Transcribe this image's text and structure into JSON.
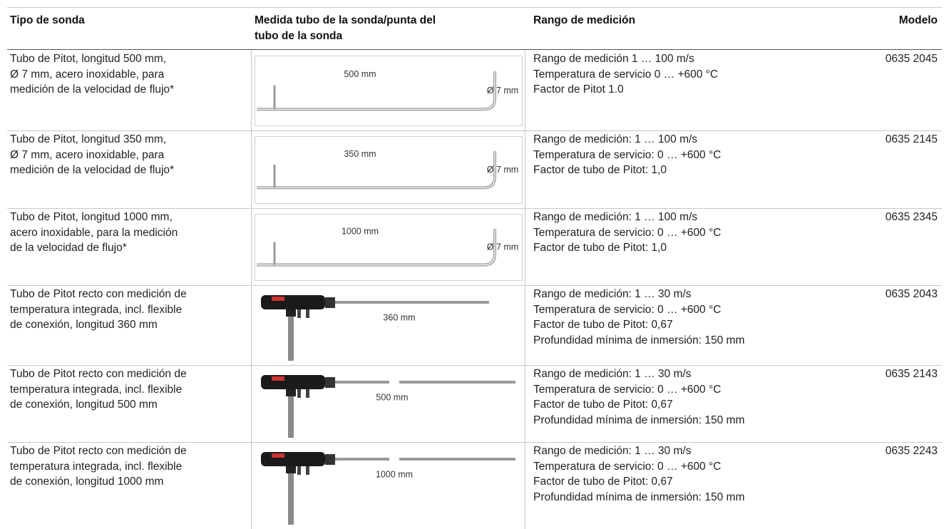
{
  "table": {
    "header": [
      [
        "Tipo de sonda"
      ],
      [
        "Medida tubo de la sonda/punta del",
        "tubo de la sonda"
      ],
      [
        "Rango de medición"
      ],
      [
        "Modelo"
      ]
    ],
    "rows": [
      {
        "type": [
          "Tubo de Pitot, longitud 500 mm,",
          "Ø 7 mm, acero inoxidable, para",
          "medición de la velocidad de flujo*"
        ],
        "drawing": {
          "length": "500 mm",
          "diameter": "Ø 7 mm"
        },
        "range": [
          "Rango de medición 1 … 100 m/s",
          "Temperatura de servicio 0 … +600 °C",
          "Factor de Pitot 1.0"
        ],
        "model": "0635 2045"
      },
      {
        "type": [
          "Tubo de Pitot, longitud 350 mm,",
          "Ø 7 mm, acero inoxidable, para",
          "medición de la velocidad de flujo*"
        ],
        "drawing": {
          "length": "350 mm",
          "diameter": "Ø 7 mm"
        },
        "range": [
          "Rango de medición: 1 … 100 m/s",
          "Temperatura de servicio: 0 … +600 °C",
          "Factor de tubo de Pitot: 1,0"
        ],
        "model": "0635 2145"
      },
      {
        "type": [
          "Tubo de Pitot, longitud 1000 mm,",
          "acero inoxidable, para la medición",
          "de la velocidad de flujo*"
        ],
        "drawing": {
          "length": "1000 mm",
          "diameter": "Ø 7 mm"
        },
        "range": [
          "Rango de medición: 1 … 100 m/s",
          "Temperatura de servicio: 0 … +600 °C",
          "Factor de tubo de Pitot: 1,0"
        ],
        "model": "0635 2345"
      },
      {
        "type": [
          "Tubo de Pitot recto con medición de",
          "temperatura integrada, incl. flexible",
          "de conexión, longitud 360 mm"
        ],
        "drawing": {
          "length": "360 mm"
        },
        "range": [
          "Rango de medición: 1 … 30 m/s",
          "Temperatura de servicio: 0 … +600 °C",
          "Factor de tubo de Pitot: 0,67",
          "Profundidad mínima de inmersión: 150 mm"
        ],
        "model": "0635 2043"
      },
      {
        "type": [
          "Tubo de Pitot recto con medición de",
          "temperatura integrada, incl. flexible",
          "de conexión, longitud 500 mm"
        ],
        "drawing": {
          "length": "500 mm"
        },
        "range": [
          "Rango de medición: 1 … 30 m/s",
          "Temperatura de servicio: 0 … +600 °C",
          "Factor de tubo de Pitot: 0,67",
          "Profundidad mínima de inmersión: 150 mm"
        ],
        "model": "0635 2143"
      },
      {
        "type": [
          "Tubo de Pitot recto con medición de",
          "temperatura integrada, incl. flexible",
          "de conexión, longitud 1000 mm"
        ],
        "drawing": {
          "length": "1000 mm"
        },
        "range": [
          "Rango de medición: 1 … 30 m/s",
          "Temperatura de servicio: 0 … +600 °C",
          "Factor de tubo de Pitot: 0,67",
          "Profundidad mínima de inmersión: 150 mm"
        ],
        "model": "0635 2243"
      }
    ]
  }
}
